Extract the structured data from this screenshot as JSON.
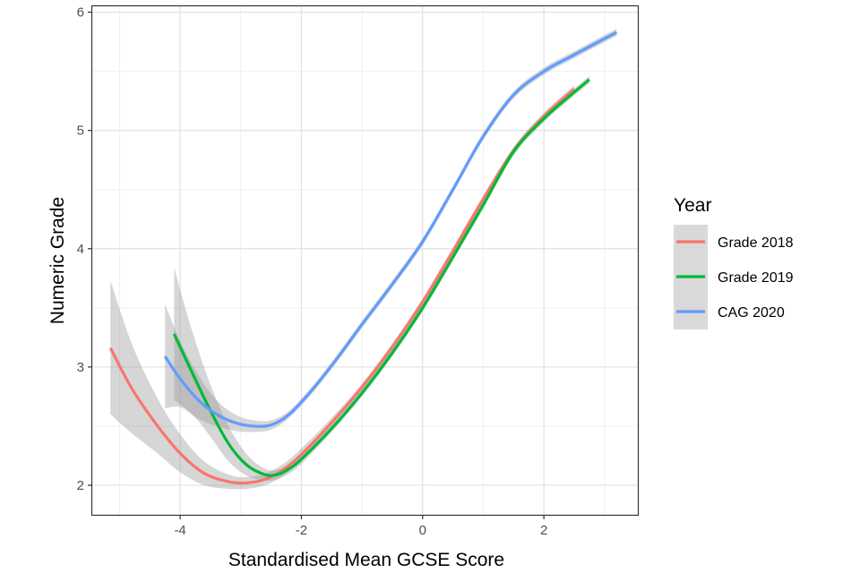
{
  "chart_data": {
    "type": "line",
    "title": "",
    "xlabel": "Standardised Mean GCSE Score",
    "ylabel": "Numeric Grade",
    "xlim": [
      -5.45,
      3.55
    ],
    "ylim": [
      1.75,
      6.05
    ],
    "x_ticks": [
      -4,
      -2,
      0,
      2
    ],
    "x_tick_labels": [
      "-4",
      "-2",
      "0",
      "2"
    ],
    "y_ticks": [
      2,
      3,
      4,
      5,
      6
    ],
    "y_tick_labels": [
      "2",
      "3",
      "4",
      "5",
      "6"
    ],
    "grid": true,
    "legend": {
      "title": "Year",
      "position": "right"
    },
    "series": [
      {
        "name": "Grade 2018",
        "color": "#F8766D",
        "x": [
          -5.15,
          -4.8,
          -4.4,
          -4.0,
          -3.6,
          -3.2,
          -2.9,
          -2.6,
          -2.3,
          -2.0,
          -1.5,
          -1.0,
          -0.5,
          0.0,
          0.5,
          1.0,
          1.5,
          2.0,
          2.5
        ],
        "y": [
          3.16,
          2.82,
          2.52,
          2.27,
          2.1,
          2.03,
          2.02,
          2.05,
          2.13,
          2.26,
          2.53,
          2.83,
          3.17,
          3.55,
          3.98,
          4.42,
          4.83,
          5.12,
          5.35
        ],
        "ci_upper": [
          3.73,
          3.2,
          2.76,
          2.43,
          2.2,
          2.09,
          2.07,
          2.1,
          2.18,
          2.31,
          2.57,
          2.86,
          3.2,
          3.58,
          4.01,
          4.45,
          4.86,
          5.15,
          5.38
        ],
        "ci_lower": [
          2.6,
          2.44,
          2.28,
          2.11,
          2.0,
          1.97,
          1.97,
          2.0,
          2.08,
          2.21,
          2.49,
          2.8,
          3.14,
          3.52,
          3.95,
          4.39,
          4.8,
          5.09,
          5.32
        ]
      },
      {
        "name": "Grade 2019",
        "color": "#00BA38",
        "x": [
          -4.1,
          -3.8,
          -3.5,
          -3.2,
          -2.9,
          -2.6,
          -2.4,
          -2.2,
          -2.0,
          -1.5,
          -1.0,
          -0.5,
          0.0,
          0.5,
          1.0,
          1.5,
          2.0,
          2.4,
          2.75
        ],
        "y": [
          3.28,
          2.95,
          2.63,
          2.35,
          2.17,
          2.09,
          2.09,
          2.14,
          2.22,
          2.48,
          2.78,
          3.12,
          3.5,
          3.93,
          4.37,
          4.82,
          5.1,
          5.28,
          5.43
        ],
        "ci_upper": [
          3.84,
          3.3,
          2.85,
          2.5,
          2.26,
          2.14,
          2.13,
          2.18,
          2.26,
          2.51,
          2.81,
          3.15,
          3.53,
          3.96,
          4.4,
          4.85,
          5.13,
          5.31,
          5.46
        ],
        "ci_lower": [
          2.72,
          2.6,
          2.41,
          2.2,
          2.08,
          2.04,
          2.05,
          2.1,
          2.18,
          2.45,
          2.75,
          3.09,
          3.47,
          3.9,
          4.34,
          4.79,
          5.07,
          5.25,
          5.4
        ]
      },
      {
        "name": "CAG 2020",
        "color": "#619CFF",
        "x": [
          -4.25,
          -4.0,
          -3.7,
          -3.4,
          -3.1,
          -2.8,
          -2.5,
          -2.2,
          -1.8,
          -1.4,
          -1.0,
          -0.5,
          0.0,
          0.5,
          1.0,
          1.5,
          2.0,
          2.5,
          3.2
        ],
        "y": [
          3.09,
          2.9,
          2.72,
          2.6,
          2.53,
          2.5,
          2.51,
          2.6,
          2.82,
          3.08,
          3.36,
          3.7,
          4.06,
          4.5,
          4.95,
          5.3,
          5.5,
          5.64,
          5.83
        ],
        "ci_upper": [
          3.53,
          3.22,
          2.93,
          2.72,
          2.6,
          2.55,
          2.55,
          2.63,
          2.85,
          3.11,
          3.39,
          3.73,
          4.09,
          4.53,
          4.98,
          5.33,
          5.53,
          5.67,
          5.86
        ],
        "ci_lower": [
          2.65,
          2.66,
          2.56,
          2.5,
          2.46,
          2.45,
          2.47,
          2.57,
          2.79,
          3.05,
          3.33,
          3.67,
          4.03,
          4.47,
          4.92,
          5.27,
          5.47,
          5.61,
          5.8
        ]
      }
    ]
  }
}
